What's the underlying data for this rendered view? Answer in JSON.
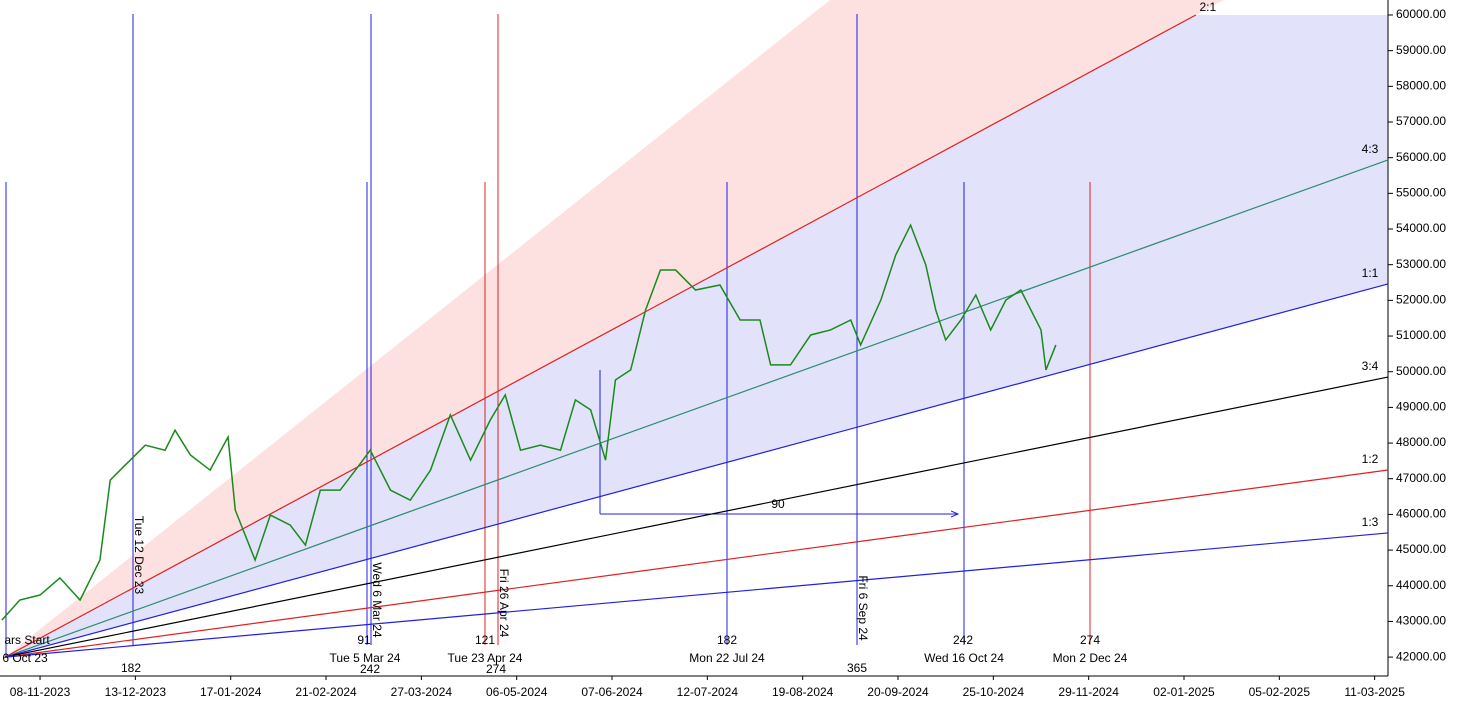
{
  "chart_data": {
    "type": "line",
    "x": [
      0.5,
      5.2,
      10.5,
      15.7,
      21,
      26.2,
      28.9,
      32.8,
      38.1,
      43.3,
      45.9,
      49.9,
      55.1,
      59.8,
      61.7,
      66.9,
      70.9,
      76.1,
      80.1,
      84,
      89.2,
      93.2,
      97.1,
      102.4,
      107.6,
      112.9,
      118.1,
      123.4,
      128.6,
      132.5,
      136.5,
      141.7,
      147,
      150.9,
      154.9,
      158.8,
      161.4,
      165.4,
      169.3,
      173.2,
      177.2,
      182.4,
      188.8,
      194.1,
      199.3,
      202.1,
      207.3,
      212.6,
      217.8,
      223.1,
      225.7,
      231,
      234.9,
      238.8,
      242.8,
      245.4,
      248,
      252,
      255.9,
      259.8,
      263.8,
      267.7,
      273,
      274.3,
      276.9
    ],
    "values": [
      43040,
      43600,
      43740,
      44220,
      43600,
      44720,
      46960,
      47380,
      47940,
      47800,
      48360,
      47670,
      47240,
      48170,
      46120,
      44720,
      45980,
      45700,
      45140,
      46680,
      46680,
      47240,
      47800,
      46680,
      46400,
      47240,
      48790,
      47520,
      48650,
      49350,
      47800,
      47940,
      47800,
      49210,
      48930,
      47520,
      49770,
      50050,
      51730,
      52850,
      52850,
      52290,
      52430,
      51450,
      51450,
      50190,
      50190,
      51030,
      51170,
      51450,
      50750,
      52010,
      53270,
      54110,
      52990,
      51730,
      50890,
      51450,
      52150,
      51170,
      52010,
      52290,
      51170,
      50050,
      50750
    ],
    "color": "#1a8a1a",
    "xlim": [
      0,
      364
    ],
    "ylim": [
      41470,
      60420
    ],
    "xticks": [
      {
        "value": 10.5,
        "label": "08-11-2023"
      },
      {
        "value": 35.5,
        "label": "13-12-2023"
      },
      {
        "value": 60.5,
        "label": "17-01-2024"
      },
      {
        "value": 85.5,
        "label": "21-02-2024"
      },
      {
        "value": 110.5,
        "label": "27-03-2024"
      },
      {
        "value": 135.5,
        "label": "06-05-2024"
      },
      {
        "value": 160.5,
        "label": "07-06-2024"
      },
      {
        "value": 185.5,
        "label": "12-07-2024"
      },
      {
        "value": 210.5,
        "label": "19-08-2024"
      },
      {
        "value": 235.5,
        "label": "20-09-2024"
      },
      {
        "value": 260.5,
        "label": "25-10-2024"
      },
      {
        "value": 285.5,
        "label": "29-11-2024"
      },
      {
        "value": 310.5,
        "label": "02-01-2025"
      },
      {
        "value": 335.5,
        "label": "05-02-2025"
      },
      {
        "value": 360.5,
        "label": "11-03-2025"
      }
    ],
    "yticks": [
      {
        "value": 42000,
        "label": "42000.00"
      },
      {
        "value": 43000,
        "label": "43000.00"
      },
      {
        "value": 44000,
        "label": "44000.00"
      },
      {
        "value": 45000,
        "label": "45000.00"
      },
      {
        "value": 46000,
        "label": "46000.00"
      },
      {
        "value": 47000,
        "label": "47000.00"
      },
      {
        "value": 48000,
        "label": "48000.00"
      },
      {
        "value": 49000,
        "label": "49000.00"
      },
      {
        "value": 50000,
        "label": "50000.00"
      },
      {
        "value": 51000,
        "label": "51000.00"
      },
      {
        "value": 52000,
        "label": "52000.00"
      },
      {
        "value": 53000,
        "label": "53000.00"
      },
      {
        "value": 54000,
        "label": "54000.00"
      },
      {
        "value": 55000,
        "label": "55000.00"
      },
      {
        "value": 56000,
        "label": "56000.00"
      },
      {
        "value": 57000,
        "label": "57000.00"
      },
      {
        "value": 58000,
        "label": "58000.00"
      },
      {
        "value": 59000,
        "label": "59000.00"
      },
      {
        "value": 60000,
        "label": "60000.00"
      }
    ],
    "fan_lines": [
      {
        "label": "2:1",
        "color": "#e02020",
        "x": [
          1.3,
          313.6
        ],
        "values": [
          42000,
          60000
        ]
      },
      {
        "label": "4:3",
        "color": "#2e8b6e",
        "x": [
          1.3,
          364
        ],
        "values": [
          42000,
          55935
        ]
      },
      {
        "label": "1:1",
        "color": "#2020e0",
        "x": [
          1.3,
          364
        ],
        "values": [
          42000,
          52460
        ]
      },
      {
        "label": "3:4",
        "color": "#000000",
        "x": [
          1.3,
          364
        ],
        "values": [
          42000,
          49850
        ]
      },
      {
        "label": "1:2",
        "color": "#e02020",
        "x": [
          1.3,
          364
        ],
        "values": [
          42000,
          47244
        ]
      },
      {
        "label": "1:3",
        "color": "#2020e0",
        "x": [
          1.3,
          364
        ],
        "values": [
          42000,
          45480
        ]
      }
    ],
    "annotations": {
      "vertical": [
        "Tue 12 Dec 23",
        "Wed 6 Mar 24",
        "Fri 26 Apr 24",
        "Fri 6 Sep 24"
      ],
      "bottom": [
        "ars Start",
        "6 Oct 23",
        "182",
        "91",
        "Tue 5 Mar 24",
        "242",
        "121",
        "Tue 23 Apr 24",
        "274",
        "182",
        "Mon 22 Jul 24",
        "365",
        "242",
        "Wed 16 Oct 24",
        "274",
        "Mon 2 Dec 24"
      ],
      "arrow": "90"
    }
  }
}
